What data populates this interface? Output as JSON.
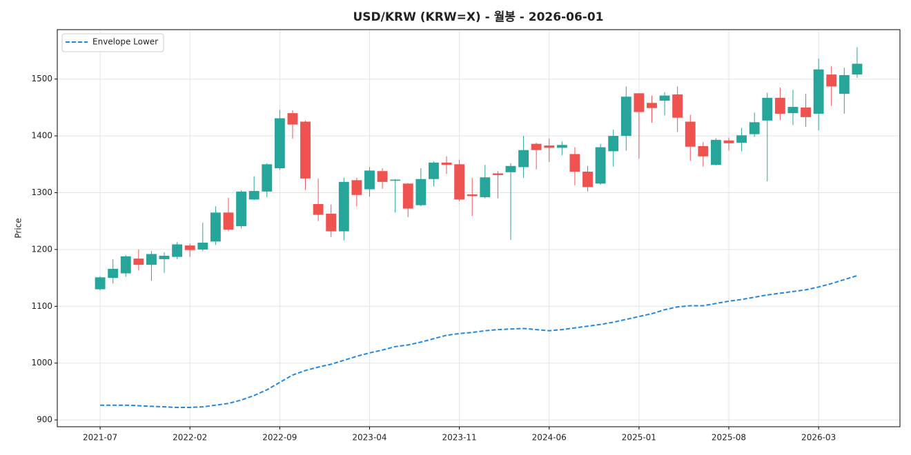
{
  "chart_data": {
    "type": "candlestick",
    "title": "USD/KRW (KRW=X) - 월봉 - 2026-06-01",
    "ylabel": "Price",
    "x": [
      "2021-07",
      "2021-08",
      "2021-09",
      "2021-10",
      "2021-11",
      "2021-12",
      "2022-01",
      "2022-02",
      "2022-03",
      "2022-04",
      "2022-05",
      "2022-06",
      "2022-07",
      "2022-08",
      "2022-09",
      "2022-10",
      "2022-11",
      "2022-12",
      "2023-01",
      "2023-02",
      "2023-03",
      "2023-04",
      "2023-05",
      "2023-06",
      "2023-07",
      "2023-08",
      "2023-09",
      "2023-10",
      "2023-11",
      "2023-12",
      "2024-01",
      "2024-02",
      "2024-03",
      "2024-04",
      "2024-05",
      "2024-06",
      "2024-07",
      "2024-08",
      "2024-09",
      "2024-10",
      "2024-11",
      "2024-12",
      "2025-01",
      "2025-02",
      "2025-03",
      "2025-04",
      "2025-05",
      "2025-06",
      "2025-07",
      "2025-08",
      "2025-09",
      "2025-10",
      "2025-11",
      "2025-12",
      "2026-01",
      "2026-02",
      "2026-03",
      "2026-04",
      "2026-05",
      "2026-06"
    ],
    "xticks": [
      "2021-07",
      "2022-02",
      "2022-09",
      "2023-04",
      "2023-11",
      "2024-06",
      "2025-01",
      "2025-08",
      "2026-03"
    ],
    "open": [
      1130,
      1150,
      1158,
      1184,
      1173,
      1183,
      1187,
      1207,
      1200,
      1214,
      1265,
      1241,
      1288,
      1302,
      1343,
      1440,
      1425,
      1280,
      1263,
      1232,
      1322,
      1306,
      1338,
      1321,
      1316,
      1278,
      1324,
      1353,
      1350,
      1297,
      1292,
      1334,
      1336,
      1345,
      1386,
      1383,
      1379,
      1368,
      1337,
      1316,
      1373,
      1400,
      1475,
      1458,
      1462,
      1473,
      1425,
      1382,
      1349,
      1392,
      1388,
      1403,
      1427,
      1467,
      1440,
      1450,
      1439,
      1508,
      1474,
      1508
    ],
    "high": [
      1153,
      1183,
      1190,
      1200,
      1197,
      1195,
      1213,
      1210,
      1247,
      1276,
      1291,
      1304,
      1329,
      1352,
      1446,
      1445,
      1427,
      1325,
      1279,
      1326,
      1326,
      1345,
      1343,
      1324,
      1317,
      1343,
      1355,
      1364,
      1358,
      1326,
      1349,
      1338,
      1352,
      1400,
      1388,
      1395,
      1390,
      1380,
      1347,
      1386,
      1411,
      1487,
      1475,
      1471,
      1477,
      1487,
      1437,
      1389,
      1396,
      1397,
      1414,
      1441,
      1476,
      1485,
      1481,
      1474,
      1536,
      1523,
      1520,
      1556
    ],
    "low": [
      1128,
      1140,
      1152,
      1163,
      1145,
      1159,
      1183,
      1187,
      1197,
      1208,
      1232,
      1237,
      1287,
      1292,
      1340,
      1395,
      1305,
      1250,
      1222,
      1216,
      1276,
      1293,
      1307,
      1265,
      1257,
      1276,
      1311,
      1333,
      1285,
      1259,
      1290,
      1290,
      1217,
      1326,
      1341,
      1354,
      1366,
      1313,
      1302,
      1314,
      1346,
      1374,
      1360,
      1423,
      1436,
      1407,
      1356,
      1346,
      1348,
      1374,
      1373,
      1398,
      1320,
      1428,
      1419,
      1416,
      1410,
      1453,
      1439,
      1502
    ],
    "close": [
      1151,
      1166,
      1188,
      1173,
      1192,
      1189,
      1209,
      1199,
      1212,
      1265,
      1235,
      1302,
      1303,
      1350,
      1431,
      1420,
      1325,
      1261,
      1232,
      1319,
      1296,
      1339,
      1319,
      1323,
      1272,
      1324,
      1353,
      1349,
      1288,
      1294,
      1327,
      1331,
      1347,
      1375,
      1375,
      1379,
      1384,
      1337,
      1310,
      1380,
      1400,
      1469,
      1442,
      1449,
      1471,
      1432,
      1381,
      1364,
      1393,
      1387,
      1401,
      1424,
      1467,
      1439,
      1451,
      1433,
      1517,
      1487,
      1507,
      1527
    ],
    "up_color": "#26a69a",
    "down_color": "#ef5350",
    "series": [
      {
        "name": "Envelope Lower",
        "color": "#1e88e5",
        "dashed": true,
        "values": [
          926,
          926,
          926,
          925,
          924,
          923,
          922,
          922,
          923,
          926,
          929,
          935,
          943,
          953,
          966,
          979,
          987,
          993,
          998,
          1005,
          1012,
          1018,
          1023,
          1029,
          1032,
          1037,
          1043,
          1049,
          1052,
          1054,
          1057,
          1059,
          1060,
          1061,
          1059,
          1057,
          1059,
          1062,
          1065,
          1068,
          1072,
          1077,
          1082,
          1087,
          1094,
          1099,
          1101,
          1101,
          1105,
          1109,
          1112,
          1116,
          1120,
          1123,
          1126,
          1129,
          1134,
          1140,
          1147,
          1154
        ]
      }
    ],
    "ylim": [
      888,
      1587
    ],
    "yticks": [
      900,
      1000,
      1100,
      1200,
      1300,
      1400,
      1500
    ],
    "grid": true,
    "legend": "upper left"
  }
}
